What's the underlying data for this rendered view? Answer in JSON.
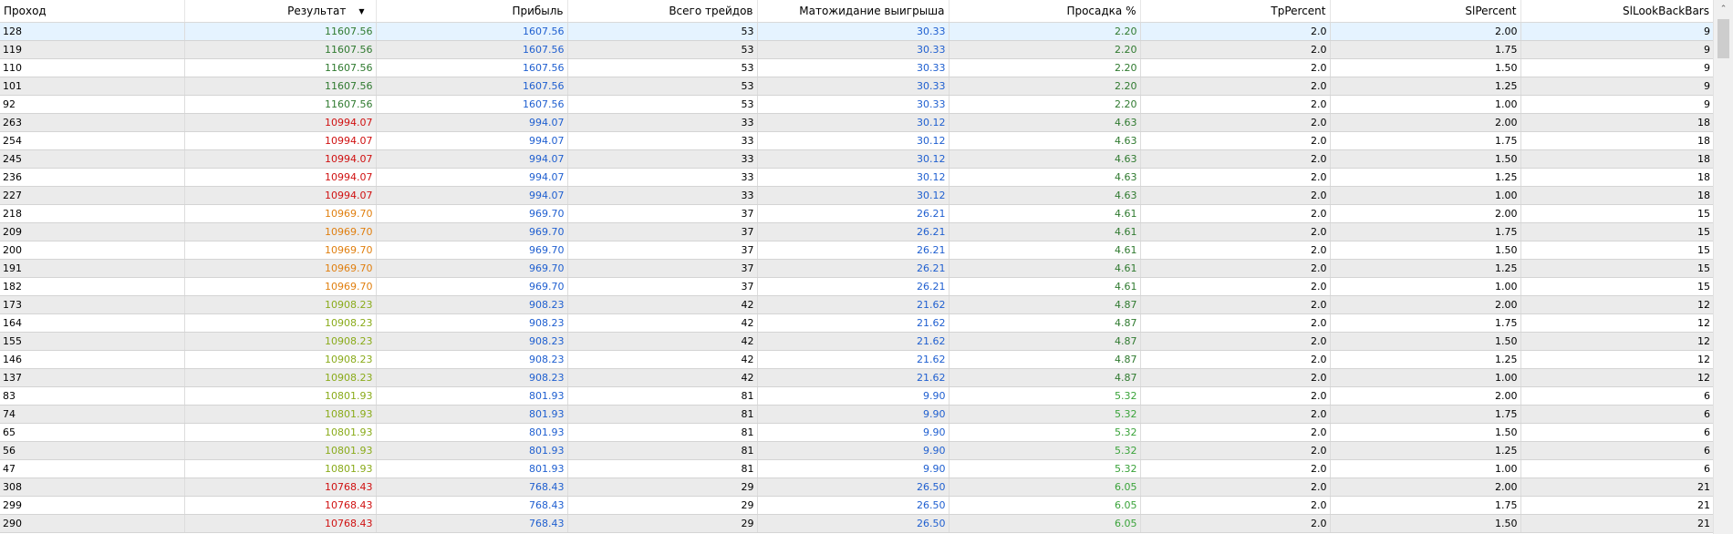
{
  "colors": {
    "result_tiers": {
      "top": "#2f7a2f",
      "red": "#d01010",
      "orange": "#e07f0f",
      "lime": "#8aab1a"
    },
    "profit": "#1f5fd0",
    "expected": "#1f5fd0",
    "drawdown_dark": "#2f7a2f",
    "drawdown_light": "#3aa33a",
    "row_alt": "#ebebeb",
    "row_selected": "#e5f3ff"
  },
  "icons": {
    "sort": "sort-descending-icon",
    "scroll_up": "chevron-up-icon"
  },
  "table": {
    "columns": [
      "Проход",
      "Результат",
      "Прибыль",
      "Всего трейдов",
      "Матожидание выигрыша",
      "Просадка %",
      "TpPercent",
      "SlPercent",
      "SlLookBackBars"
    ],
    "sort_arrow": "▼",
    "rows": [
      {
        "pass": "128",
        "result": "11607.56",
        "result_color": "#2f7a2f",
        "profit": "1607.56",
        "trades": "53",
        "expected": "30.33",
        "drawdown": "2.20",
        "drawdown_color": "#2f7a2f",
        "tp": "2.0",
        "sl": "2.00",
        "lookback": "9"
      },
      {
        "pass": "119",
        "result": "11607.56",
        "result_color": "#2f7a2f",
        "profit": "1607.56",
        "trades": "53",
        "expected": "30.33",
        "drawdown": "2.20",
        "drawdown_color": "#2f7a2f",
        "tp": "2.0",
        "sl": "1.75",
        "lookback": "9"
      },
      {
        "pass": "110",
        "result": "11607.56",
        "result_color": "#2f7a2f",
        "profit": "1607.56",
        "trades": "53",
        "expected": "30.33",
        "drawdown": "2.20",
        "drawdown_color": "#2f7a2f",
        "tp": "2.0",
        "sl": "1.50",
        "lookback": "9"
      },
      {
        "pass": "101",
        "result": "11607.56",
        "result_color": "#2f7a2f",
        "profit": "1607.56",
        "trades": "53",
        "expected": "30.33",
        "drawdown": "2.20",
        "drawdown_color": "#2f7a2f",
        "tp": "2.0",
        "sl": "1.25",
        "lookback": "9"
      },
      {
        "pass": "92",
        "result": "11607.56",
        "result_color": "#2f7a2f",
        "profit": "1607.56",
        "trades": "53",
        "expected": "30.33",
        "drawdown": "2.20",
        "drawdown_color": "#2f7a2f",
        "tp": "2.0",
        "sl": "1.00",
        "lookback": "9"
      },
      {
        "pass": "263",
        "result": "10994.07",
        "result_color": "#d01010",
        "profit": "994.07",
        "trades": "33",
        "expected": "30.12",
        "drawdown": "4.63",
        "drawdown_color": "#2f7a2f",
        "tp": "2.0",
        "sl": "2.00",
        "lookback": "18"
      },
      {
        "pass": "254",
        "result": "10994.07",
        "result_color": "#d01010",
        "profit": "994.07",
        "trades": "33",
        "expected": "30.12",
        "drawdown": "4.63",
        "drawdown_color": "#2f7a2f",
        "tp": "2.0",
        "sl": "1.75",
        "lookback": "18"
      },
      {
        "pass": "245",
        "result": "10994.07",
        "result_color": "#d01010",
        "profit": "994.07",
        "trades": "33",
        "expected": "30.12",
        "drawdown": "4.63",
        "drawdown_color": "#2f7a2f",
        "tp": "2.0",
        "sl": "1.50",
        "lookback": "18"
      },
      {
        "pass": "236",
        "result": "10994.07",
        "result_color": "#d01010",
        "profit": "994.07",
        "trades": "33",
        "expected": "30.12",
        "drawdown": "4.63",
        "drawdown_color": "#2f7a2f",
        "tp": "2.0",
        "sl": "1.25",
        "lookback": "18"
      },
      {
        "pass": "227",
        "result": "10994.07",
        "result_color": "#d01010",
        "profit": "994.07",
        "trades": "33",
        "expected": "30.12",
        "drawdown": "4.63",
        "drawdown_color": "#2f7a2f",
        "tp": "2.0",
        "sl": "1.00",
        "lookback": "18"
      },
      {
        "pass": "218",
        "result": "10969.70",
        "result_color": "#e07f0f",
        "profit": "969.70",
        "trades": "37",
        "expected": "26.21",
        "drawdown": "4.61",
        "drawdown_color": "#2f7a2f",
        "tp": "2.0",
        "sl": "2.00",
        "lookback": "15"
      },
      {
        "pass": "209",
        "result": "10969.70",
        "result_color": "#e07f0f",
        "profit": "969.70",
        "trades": "37",
        "expected": "26.21",
        "drawdown": "4.61",
        "drawdown_color": "#2f7a2f",
        "tp": "2.0",
        "sl": "1.75",
        "lookback": "15"
      },
      {
        "pass": "200",
        "result": "10969.70",
        "result_color": "#e07f0f",
        "profit": "969.70",
        "trades": "37",
        "expected": "26.21",
        "drawdown": "4.61",
        "drawdown_color": "#2f7a2f",
        "tp": "2.0",
        "sl": "1.50",
        "lookback": "15"
      },
      {
        "pass": "191",
        "result": "10969.70",
        "result_color": "#e07f0f",
        "profit": "969.70",
        "trades": "37",
        "expected": "26.21",
        "drawdown": "4.61",
        "drawdown_color": "#2f7a2f",
        "tp": "2.0",
        "sl": "1.25",
        "lookback": "15"
      },
      {
        "pass": "182",
        "result": "10969.70",
        "result_color": "#e07f0f",
        "profit": "969.70",
        "trades": "37",
        "expected": "26.21",
        "drawdown": "4.61",
        "drawdown_color": "#2f7a2f",
        "tp": "2.0",
        "sl": "1.00",
        "lookback": "15"
      },
      {
        "pass": "173",
        "result": "10908.23",
        "result_color": "#8aab1a",
        "profit": "908.23",
        "trades": "42",
        "expected": "21.62",
        "drawdown": "4.87",
        "drawdown_color": "#2f7a2f",
        "tp": "2.0",
        "sl": "2.00",
        "lookback": "12"
      },
      {
        "pass": "164",
        "result": "10908.23",
        "result_color": "#8aab1a",
        "profit": "908.23",
        "trades": "42",
        "expected": "21.62",
        "drawdown": "4.87",
        "drawdown_color": "#2f7a2f",
        "tp": "2.0",
        "sl": "1.75",
        "lookback": "12"
      },
      {
        "pass": "155",
        "result": "10908.23",
        "result_color": "#8aab1a",
        "profit": "908.23",
        "trades": "42",
        "expected": "21.62",
        "drawdown": "4.87",
        "drawdown_color": "#2f7a2f",
        "tp": "2.0",
        "sl": "1.50",
        "lookback": "12"
      },
      {
        "pass": "146",
        "result": "10908.23",
        "result_color": "#8aab1a",
        "profit": "908.23",
        "trades": "42",
        "expected": "21.62",
        "drawdown": "4.87",
        "drawdown_color": "#2f7a2f",
        "tp": "2.0",
        "sl": "1.25",
        "lookback": "12"
      },
      {
        "pass": "137",
        "result": "10908.23",
        "result_color": "#8aab1a",
        "profit": "908.23",
        "trades": "42",
        "expected": "21.62",
        "drawdown": "4.87",
        "drawdown_color": "#2f7a2f",
        "tp": "2.0",
        "sl": "1.00",
        "lookback": "12"
      },
      {
        "pass": "83",
        "result": "10801.93",
        "result_color": "#8aab1a",
        "profit": "801.93",
        "trades": "81",
        "expected": "9.90",
        "drawdown": "5.32",
        "drawdown_color": "#3aa33a",
        "tp": "2.0",
        "sl": "2.00",
        "lookback": "6"
      },
      {
        "pass": "74",
        "result": "10801.93",
        "result_color": "#8aab1a",
        "profit": "801.93",
        "trades": "81",
        "expected": "9.90",
        "drawdown": "5.32",
        "drawdown_color": "#3aa33a",
        "tp": "2.0",
        "sl": "1.75",
        "lookback": "6"
      },
      {
        "pass": "65",
        "result": "10801.93",
        "result_color": "#8aab1a",
        "profit": "801.93",
        "trades": "81",
        "expected": "9.90",
        "drawdown": "5.32",
        "drawdown_color": "#3aa33a",
        "tp": "2.0",
        "sl": "1.50",
        "lookback": "6"
      },
      {
        "pass": "56",
        "result": "10801.93",
        "result_color": "#8aab1a",
        "profit": "801.93",
        "trades": "81",
        "expected": "9.90",
        "drawdown": "5.32",
        "drawdown_color": "#3aa33a",
        "tp": "2.0",
        "sl": "1.25",
        "lookback": "6"
      },
      {
        "pass": "47",
        "result": "10801.93",
        "result_color": "#8aab1a",
        "profit": "801.93",
        "trades": "81",
        "expected": "9.90",
        "drawdown": "5.32",
        "drawdown_color": "#3aa33a",
        "tp": "2.0",
        "sl": "1.00",
        "lookback": "6"
      },
      {
        "pass": "308",
        "result": "10768.43",
        "result_color": "#d01010",
        "profit": "768.43",
        "trades": "29",
        "expected": "26.50",
        "drawdown": "6.05",
        "drawdown_color": "#3aa33a",
        "tp": "2.0",
        "sl": "2.00",
        "lookback": "21"
      },
      {
        "pass": "299",
        "result": "10768.43",
        "result_color": "#d01010",
        "profit": "768.43",
        "trades": "29",
        "expected": "26.50",
        "drawdown": "6.05",
        "drawdown_color": "#3aa33a",
        "tp": "2.0",
        "sl": "1.75",
        "lookback": "21"
      },
      {
        "pass": "290",
        "result": "10768.43",
        "result_color": "#d01010",
        "profit": "768.43",
        "trades": "29",
        "expected": "26.50",
        "drawdown": "6.05",
        "drawdown_color": "#3aa33a",
        "tp": "2.0",
        "sl": "1.50",
        "lookback": "21"
      }
    ],
    "selected_index": 0
  },
  "scrollbar": {
    "up_glyph": "⌃"
  }
}
